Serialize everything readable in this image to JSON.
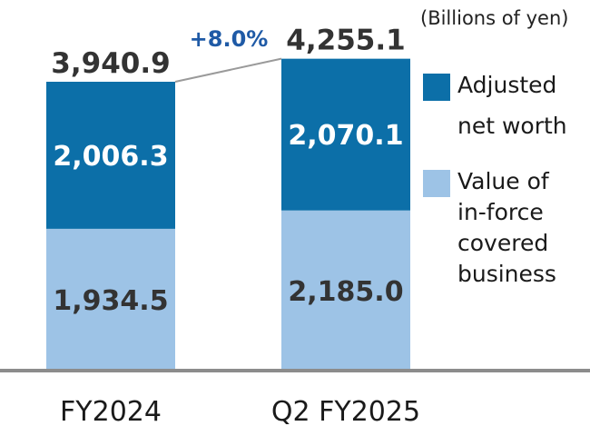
{
  "chart_data": {
    "type": "bar",
    "stacked": true,
    "unit_label": "(Billions of yen)",
    "categories": [
      "FY2024",
      "Q2 FY2025"
    ],
    "series": [
      {
        "name": "Value of in-force covered business",
        "values": [
          1934.5,
          2185.0
        ],
        "labels": [
          "1,934.5",
          "2,185.0"
        ],
        "color": "#9dc3e6",
        "label_color": "#333333"
      },
      {
        "name": "Adjusted net worth",
        "values": [
          2006.3,
          2070.1
        ],
        "labels": [
          "2,006.3",
          "2,070.1"
        ],
        "color": "#0c6fa8",
        "label_color": "#ffffff"
      }
    ],
    "totals": [
      3940.9,
      4255.1
    ],
    "total_labels": [
      "3,940.9",
      "4,255.1"
    ],
    "growth_label": "+8.0%",
    "growth_color": "#1f5aa6",
    "ylim": [
      0,
      4500
    ]
  },
  "legend": [
    {
      "label": "Adjusted net worth",
      "color": "#0c6fa8"
    },
    {
      "label": "Value of in-force covered business",
      "color": "#9dc3e6"
    }
  ]
}
